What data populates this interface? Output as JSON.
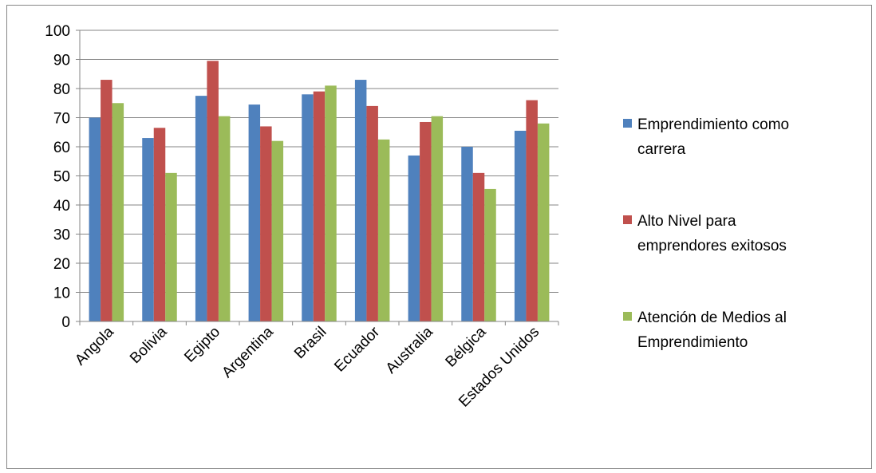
{
  "chart_data": {
    "type": "bar",
    "title": "",
    "xlabel": "",
    "ylabel": "",
    "ylim": [
      0,
      100
    ],
    "yticks": [
      0,
      10,
      20,
      30,
      40,
      50,
      60,
      70,
      80,
      90,
      100
    ],
    "grid": true,
    "legend_position": "right",
    "categories": [
      "Angola",
      "Bolivia",
      "Egipto",
      "Argentina",
      "Brasil",
      "Ecuador",
      "Australia",
      "Bélgica",
      "Estados Unidos"
    ],
    "series": [
      {
        "name": "Emprendimiento como carrera",
        "legend_lines": [
          "Emprendimiento como",
          "carrera"
        ],
        "color": "#4f81bd",
        "values": [
          70,
          63,
          77.5,
          74.5,
          78,
          83,
          57,
          60,
          65.5
        ]
      },
      {
        "name": "Alto Nivel para emprendores exitosos",
        "legend_lines": [
          "Alto Nivel para",
          "emprendores exitosos"
        ],
        "color": "#c0504d",
        "values": [
          83,
          66.5,
          89.5,
          67,
          79,
          74,
          68.5,
          51,
          76
        ]
      },
      {
        "name": "Atención de Medios al Emprendimiento",
        "legend_lines": [
          "Atención de Medios al",
          "Emprendimiento"
        ],
        "color": "#9bbb59",
        "values": [
          75,
          51,
          70.5,
          62,
          81,
          62.5,
          70.5,
          45.5,
          68
        ]
      }
    ]
  }
}
